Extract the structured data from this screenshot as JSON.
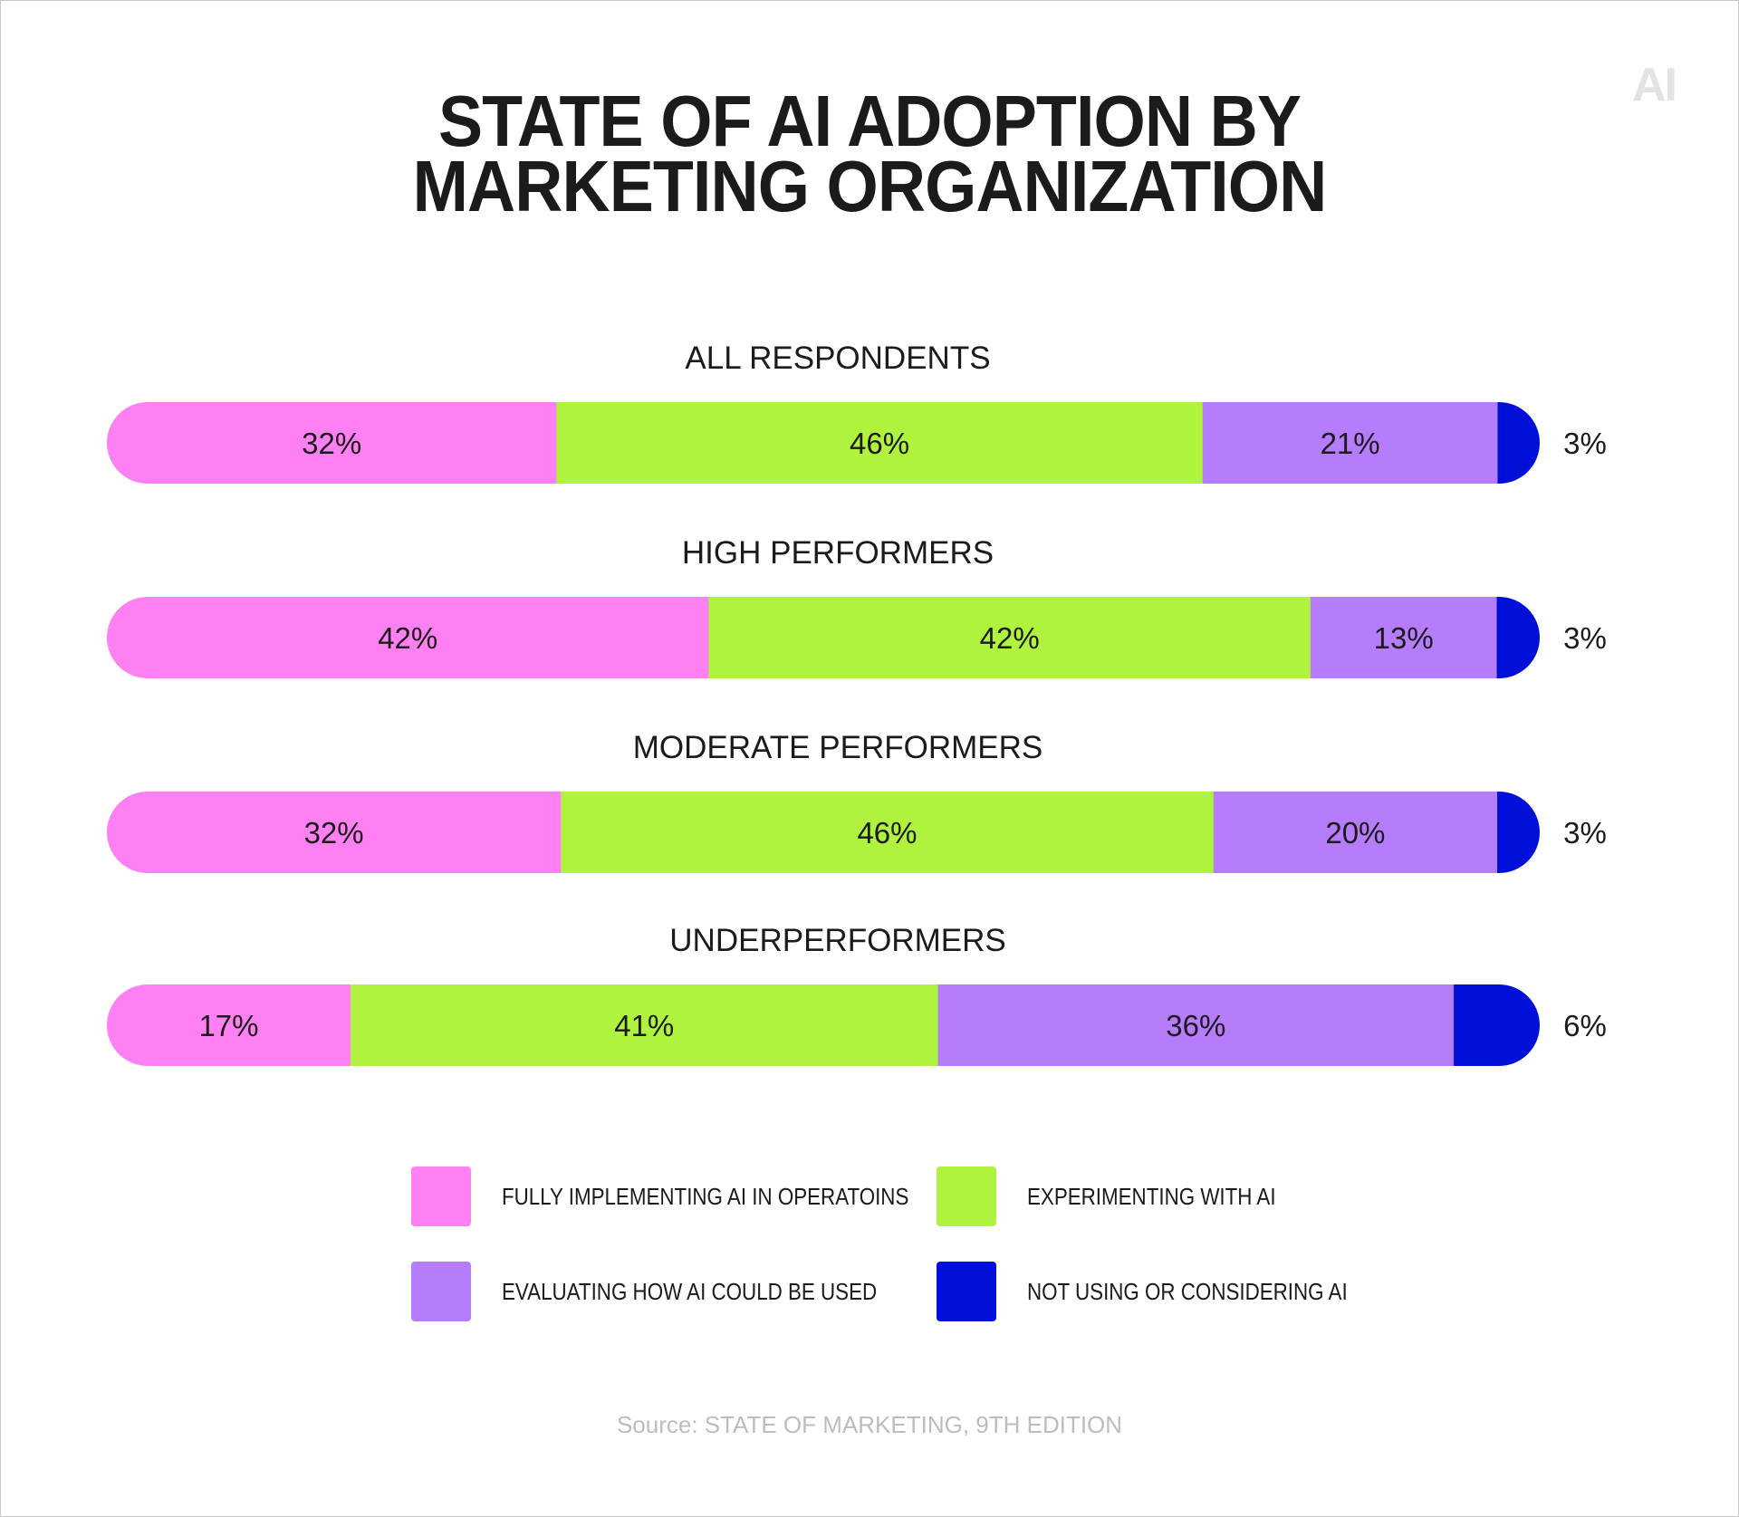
{
  "title_line1": "STATE OF AI ADOPTION BY",
  "title_line2": "MARKETING ORGANIZATION",
  "logo": "AI",
  "source": "Source: STATE OF MARKETING, 9TH EDITION",
  "colors": {
    "fully": "#ff80f2",
    "experimenting": "#b0f33f",
    "evaluating": "#b57cfc",
    "not_using": "#0010d8",
    "text": "#1c1a1b"
  },
  "legend": [
    {
      "label": "FULLY IMPLEMENTING AI IN OPERATOINS",
      "color_key": "fully"
    },
    {
      "label": "EXPERIMENTING WITH AI",
      "color_key": "experimenting"
    },
    {
      "label": "EVALUATING HOW AI COULD BE USED",
      "color_key": "evaluating"
    },
    {
      "label": "NOT USING OR CONSIDERING AI",
      "color_key": "not_using"
    }
  ],
  "chart_data": {
    "type": "bar",
    "orientation": "horizontal-stacked",
    "title": "STATE OF AI ADOPTION BY MARKETING ORGANIZATION",
    "categories": [
      "ALL RESPONDENTS",
      "HIGH PERFORMERS",
      "MODERATE PERFORMERS",
      "UNDERPERFORMERS"
    ],
    "series": [
      {
        "name": "FULLY IMPLEMENTING AI IN OPERATOINS",
        "values": [
          32,
          42,
          32,
          17
        ],
        "labels": [
          "32%",
          "42%",
          "32%",
          "17%"
        ]
      },
      {
        "name": "EXPERIMENTING WITH AI",
        "values": [
          46,
          42,
          46,
          41
        ],
        "labels": [
          "46%",
          "42%",
          "46%",
          "41%"
        ]
      },
      {
        "name": "EVALUATING HOW AI COULD BE USED",
        "values": [
          21,
          13,
          20,
          36
        ],
        "labels": [
          "21%",
          "13%",
          "20%",
          "36%"
        ]
      },
      {
        "name": "NOT USING OR CONSIDERING AI",
        "values": [
          3,
          3,
          3,
          6
        ],
        "labels": [
          "3%",
          "3%",
          "3%",
          "6%"
        ]
      }
    ],
    "unit": "%",
    "legend_position": "bottom"
  }
}
